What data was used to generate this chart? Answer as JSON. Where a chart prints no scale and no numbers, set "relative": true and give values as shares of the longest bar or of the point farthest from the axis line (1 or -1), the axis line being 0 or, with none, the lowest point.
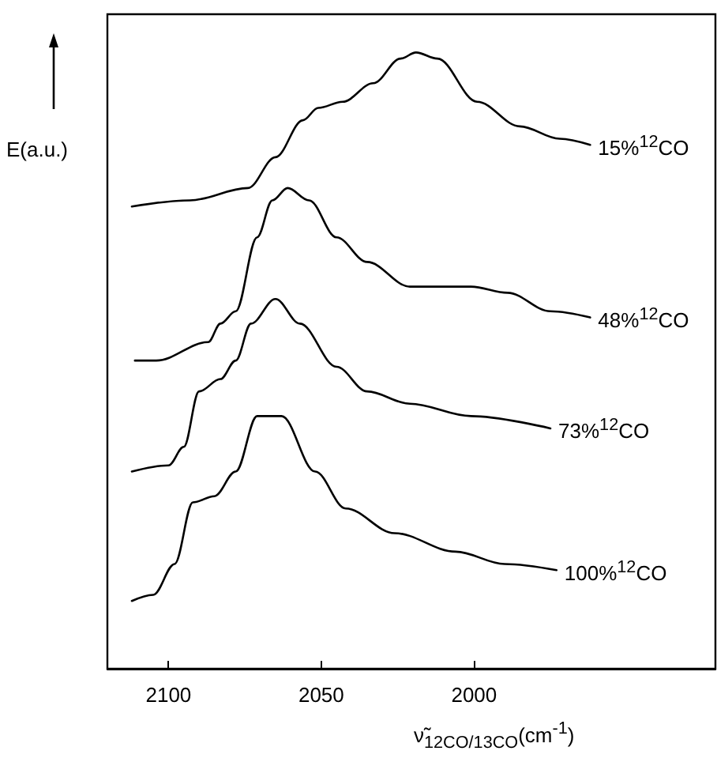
{
  "chart_data": {
    "type": "line",
    "relative": true,
    "ylabel": "E(a.u.)",
    "xlabel": "ν̃$_{12CO/13CO}$(cm$^{-1}$)",
    "xlim": [
      2120,
      1921
    ],
    "xticks": [
      2100,
      2050,
      2000
    ],
    "grid": false,
    "marker": "none",
    "line_style": "solid",
    "series": [
      {
        "name": "15%$^{12}$CO",
        "color": "#000000",
        "x": [
          2112,
          2093,
          2074,
          2065,
          2056,
          2051,
          2043,
          2033,
          2024,
          2019,
          2012,
          1999,
          1985,
          1972,
          1962
        ],
        "values": [
          0.75,
          0.76,
          0.78,
          0.83,
          0.89,
          0.91,
          0.92,
          0.95,
          0.99,
          1.0,
          0.99,
          0.92,
          0.88,
          0.86,
          0.85
        ]
      },
      {
        "name": "48%$^{12}$CO",
        "color": "#000000",
        "x": [
          2111,
          2104,
          2087,
          2083,
          2078,
          2071,
          2066,
          2061,
          2054,
          2045,
          2035,
          2021,
          2014,
          2001,
          1989,
          1975,
          1962
        ],
        "values": [
          0.5,
          0.5,
          0.53,
          0.56,
          0.58,
          0.7,
          0.76,
          0.78,
          0.76,
          0.7,
          0.66,
          0.62,
          0.62,
          0.62,
          0.61,
          0.58,
          0.57
        ]
      },
      {
        "name": "73%$^{12}$CO",
        "color": "#000000",
        "x": [
          2112,
          2100,
          2095,
          2090,
          2083,
          2078,
          2073,
          2065,
          2057,
          2045,
          2035,
          2021,
          2001,
          1975
        ],
        "values": [
          0.32,
          0.33,
          0.36,
          0.45,
          0.47,
          0.5,
          0.56,
          0.6,
          0.56,
          0.49,
          0.45,
          0.43,
          0.41,
          0.39
        ]
      },
      {
        "name": "100%$^{12}$CO",
        "color": "#000000",
        "x": [
          2112,
          2105,
          2098,
          2092,
          2085,
          2078,
          2071,
          2068,
          2063,
          2052,
          2042,
          2026,
          2006,
          1990,
          1973
        ],
        "values": [
          0.11,
          0.12,
          0.17,
          0.27,
          0.28,
          0.32,
          0.41,
          0.41,
          0.41,
          0.32,
          0.26,
          0.22,
          0.19,
          0.17,
          0.16
        ]
      }
    ]
  }
}
